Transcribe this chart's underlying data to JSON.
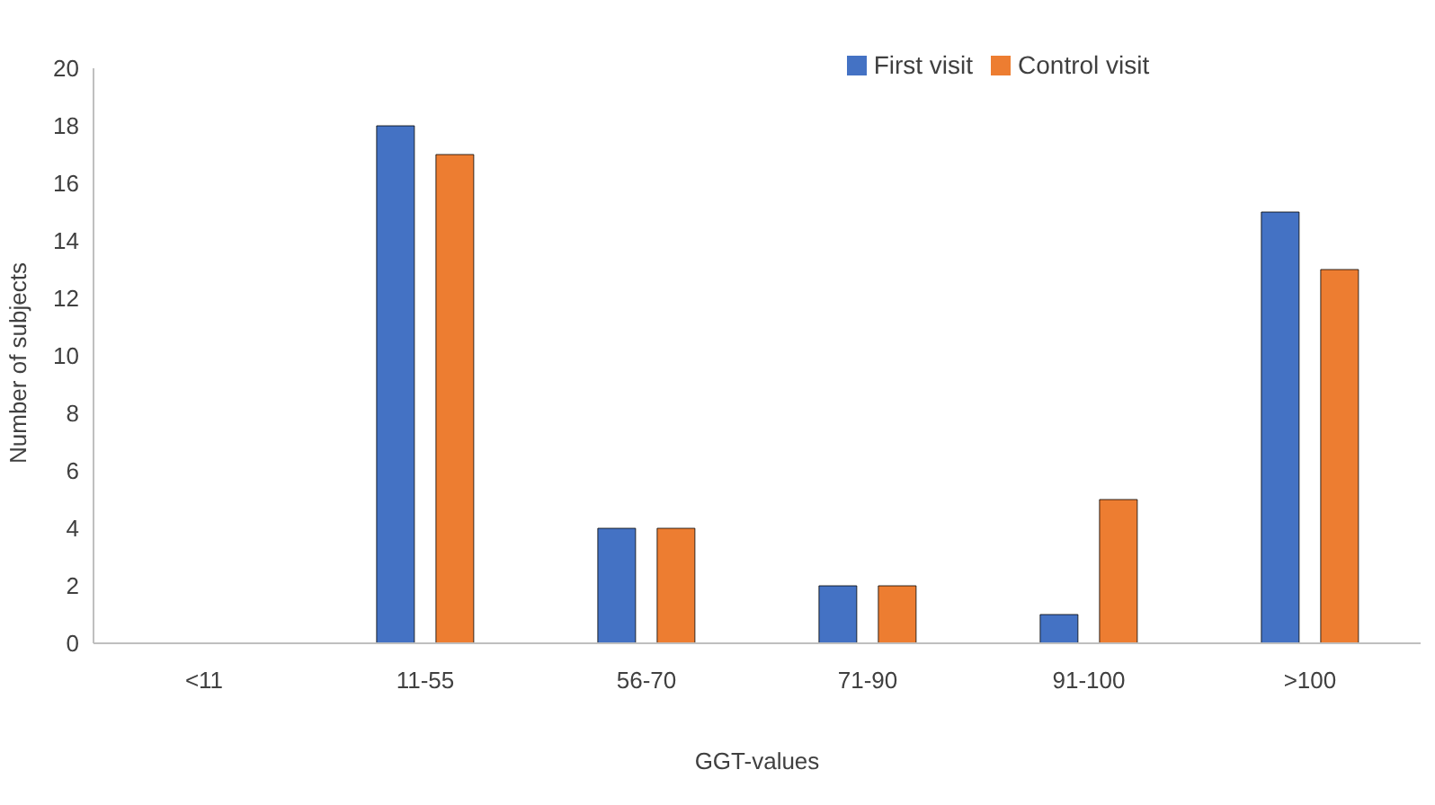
{
  "chart_data": {
    "type": "bar",
    "xlabel": "GGT-values",
    "ylabel": "Number of subjects",
    "categories": [
      "<11",
      "11-55",
      "56-70",
      "71-90",
      "91-100",
      ">100"
    ],
    "series": [
      {
        "name": "First visit",
        "color": "#4472c4",
        "values": [
          0,
          18,
          4,
          2,
          1,
          15
        ]
      },
      {
        "name": "Control visit",
        "color": "#ed7d31",
        "values": [
          0,
          17,
          4,
          2,
          5,
          13
        ]
      }
    ],
    "ylim": [
      0,
      20
    ],
    "yticks": [
      0,
      2,
      4,
      6,
      8,
      10,
      12,
      14,
      16,
      18,
      20
    ],
    "grid": false,
    "legend": "top"
  }
}
